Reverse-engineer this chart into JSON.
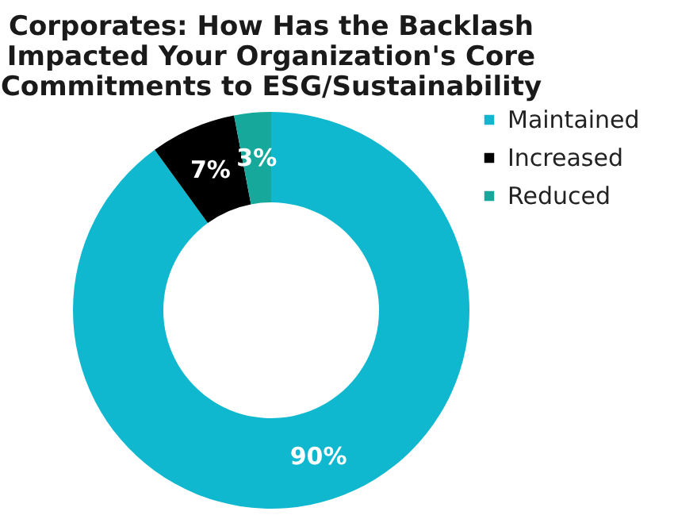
{
  "chart_data": {
    "type": "donut",
    "title": "Corporates: How Has the Backlash Impacted Your Organization's Core Commitments to ESG/Sustainability",
    "categories": [
      "Maintained",
      "Increased",
      "Reduced"
    ],
    "values": [
      90,
      7,
      3
    ],
    "colors": [
      "#10b8cf",
      "#000000",
      "#16a89a"
    ],
    "value_labels": [
      "90%",
      "7%",
      "3%"
    ],
    "legend": "right"
  }
}
